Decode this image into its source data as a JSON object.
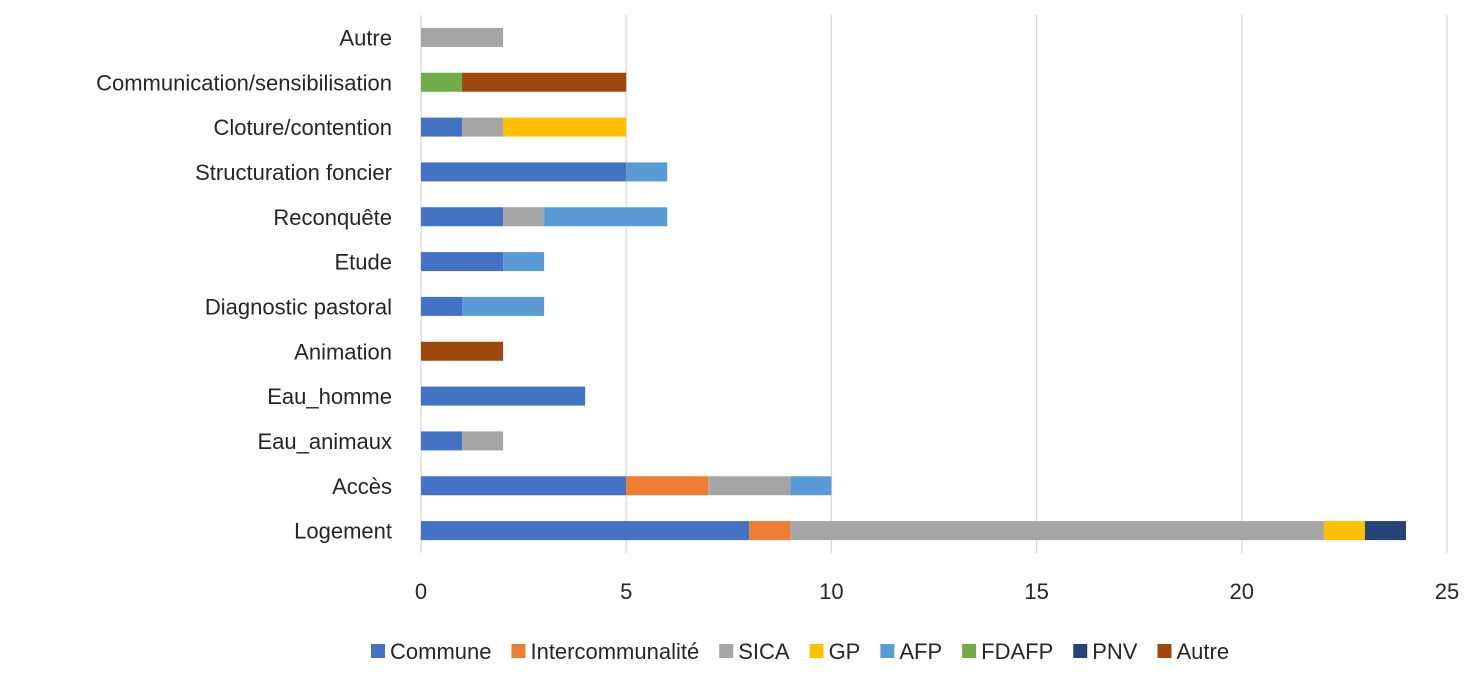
{
  "chart_data": {
    "type": "bar",
    "orientation": "horizontal",
    "stacked": true,
    "categories": [
      "Logement",
      "Accès",
      "Eau_animaux",
      "Eau_homme",
      "Animation",
      "Diagnostic pastoral",
      "Etude",
      "Reconquête",
      "Structuration foncier",
      "Cloture/contention",
      "Communication/sensibilisation",
      "Autre"
    ],
    "series": [
      {
        "name": "Commune",
        "color": "#4472C4",
        "values": [
          8,
          5,
          1,
          4,
          0,
          1,
          2,
          2,
          5,
          1,
          0,
          0
        ]
      },
      {
        "name": "Intercommunalité",
        "color": "#ED7D31",
        "values": [
          1,
          2,
          0,
          0,
          0,
          0,
          0,
          0,
          0,
          0,
          0,
          0
        ]
      },
      {
        "name": "SICA",
        "color": "#A5A5A5",
        "values": [
          13,
          2,
          1,
          0,
          0,
          0,
          0,
          1,
          0,
          1,
          0,
          2
        ]
      },
      {
        "name": "GP",
        "color": "#FFC000",
        "values": [
          1,
          0,
          0,
          0,
          0,
          0,
          0,
          0,
          0,
          3,
          0,
          0
        ]
      },
      {
        "name": "AFP",
        "color": "#5B9BD5",
        "values": [
          0,
          1,
          0,
          0,
          0,
          2,
          1,
          3,
          1,
          0,
          0,
          0
        ]
      },
      {
        "name": "FDAFP",
        "color": "#70AD47",
        "values": [
          0,
          0,
          0,
          0,
          0,
          0,
          0,
          0,
          0,
          0,
          1,
          0
        ]
      },
      {
        "name": "PNV",
        "color": "#264478",
        "values": [
          1,
          0,
          0,
          0,
          0,
          0,
          0,
          0,
          0,
          0,
          0,
          0
        ]
      },
      {
        "name": "Autre",
        "color": "#9E480E",
        "values": [
          0,
          0,
          0,
          0,
          2,
          0,
          0,
          0,
          0,
          0,
          4,
          0
        ]
      }
    ],
    "xlim": [
      0,
      25
    ],
    "xticks": [
      0,
      5,
      10,
      15,
      20,
      25
    ],
    "title": "",
    "xlabel": "",
    "ylabel": "",
    "grid": "vertical",
    "legend_position": "bottom"
  }
}
